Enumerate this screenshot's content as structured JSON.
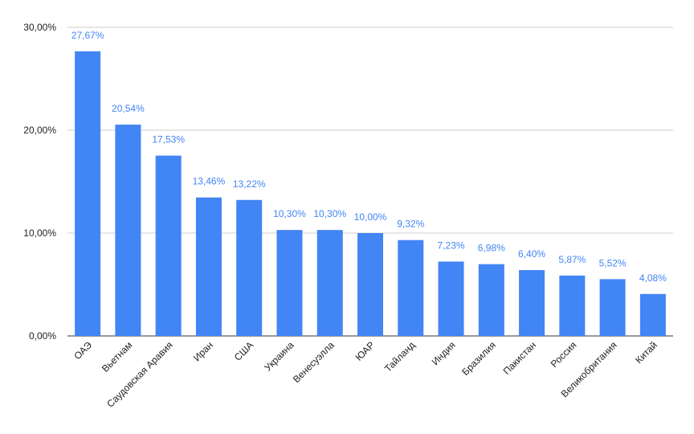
{
  "chart_data": {
    "type": "bar",
    "title": "",
    "xlabel": "",
    "ylabel": "",
    "ylim": [
      0,
      30
    ],
    "yticks": [
      0,
      10,
      20,
      30
    ],
    "ytick_labels": [
      "0,00%",
      "10,00%",
      "20,00%",
      "30,00%"
    ],
    "grid": true,
    "categories": [
      "ОАЭ",
      "Вьетнам",
      "Саудовская Аравия",
      "Иран",
      "США",
      "Украина",
      "Венесуэлла",
      "ЮАР",
      "Тайланд",
      "Индия",
      "Бразилия",
      "Пакистан",
      "Россия",
      "Великобритания",
      "Китай"
    ],
    "values": [
      27.67,
      20.54,
      17.53,
      13.46,
      13.22,
      10.3,
      10.3,
      10.0,
      9.32,
      7.23,
      6.98,
      6.4,
      5.87,
      5.52,
      4.08
    ],
    "value_labels": [
      "27,67%",
      "20,54%",
      "17,53%",
      "13,46%",
      "13,22%",
      "10,30%",
      "10,30%",
      "10,00%",
      "9,32%",
      "7,23%",
      "6,98%",
      "6,40%",
      "5,87%",
      "5,52%",
      "4,08%"
    ],
    "colors": {
      "bar": "#4285f4",
      "label": "#4285f4",
      "grid": "#cccccc",
      "axis_text": "#222222"
    }
  }
}
